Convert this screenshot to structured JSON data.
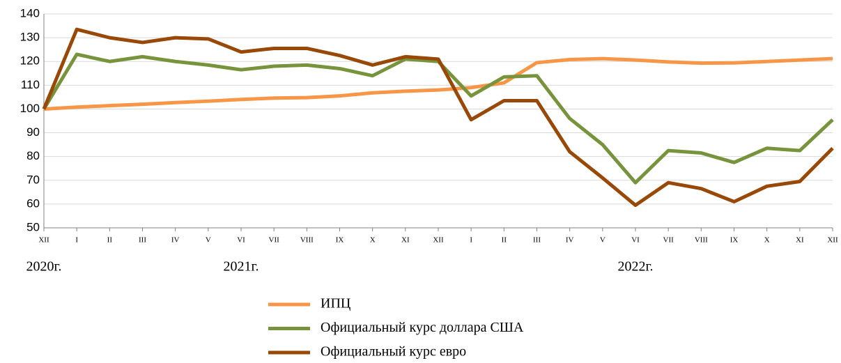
{
  "chart_data": {
    "type": "line",
    "categories": [
      "XII",
      "I",
      "II",
      "III",
      "IV",
      "V",
      "VI",
      "VII",
      "VIII",
      "IX",
      "X",
      "XI",
      "XII",
      "I",
      "II",
      "III",
      "IV",
      "V",
      "VI",
      "VII",
      "VIII",
      "IX",
      "X",
      "XI",
      "XII"
    ],
    "annotations": [
      "2020г.",
      "2021г.",
      "2022г."
    ],
    "series": [
      {
        "name": "ИПЦ",
        "color": "#f79646",
        "values": [
          100,
          100.8,
          101.4,
          102,
          102.7,
          103.3,
          104,
          104.6,
          104.8,
          105.5,
          106.8,
          107.5,
          108,
          109,
          111,
          119.5,
          120.8,
          121.2,
          120.6,
          119.8,
          119.3,
          119.4,
          120,
          120.6,
          121.2
        ]
      },
      {
        "name": "Официальный курс доллара США",
        "color": "#77933c",
        "values": [
          100,
          123,
          120,
          122,
          120,
          118.5,
          116.5,
          118,
          118.5,
          117,
          114,
          121,
          120,
          105.5,
          113.5,
          114,
          96,
          85,
          69,
          82.5,
          81.5,
          77.5,
          83.5,
          82.5,
          95.5
        ]
      },
      {
        "name": "Официальный курс евро",
        "color": "#984807",
        "values": [
          100,
          133.5,
          130,
          128,
          130,
          129.5,
          124,
          125.5,
          125.5,
          122.5,
          118.5,
          122,
          121,
          95.5,
          103.5,
          103.5,
          82,
          71,
          59.5,
          69,
          66.5,
          61,
          67.5,
          69.5,
          83.5
        ]
      }
    ],
    "ylim": [
      50,
      140
    ],
    "yticks": [
      50,
      60,
      70,
      80,
      90,
      100,
      110,
      120,
      130,
      140
    ],
    "grid": true
  }
}
